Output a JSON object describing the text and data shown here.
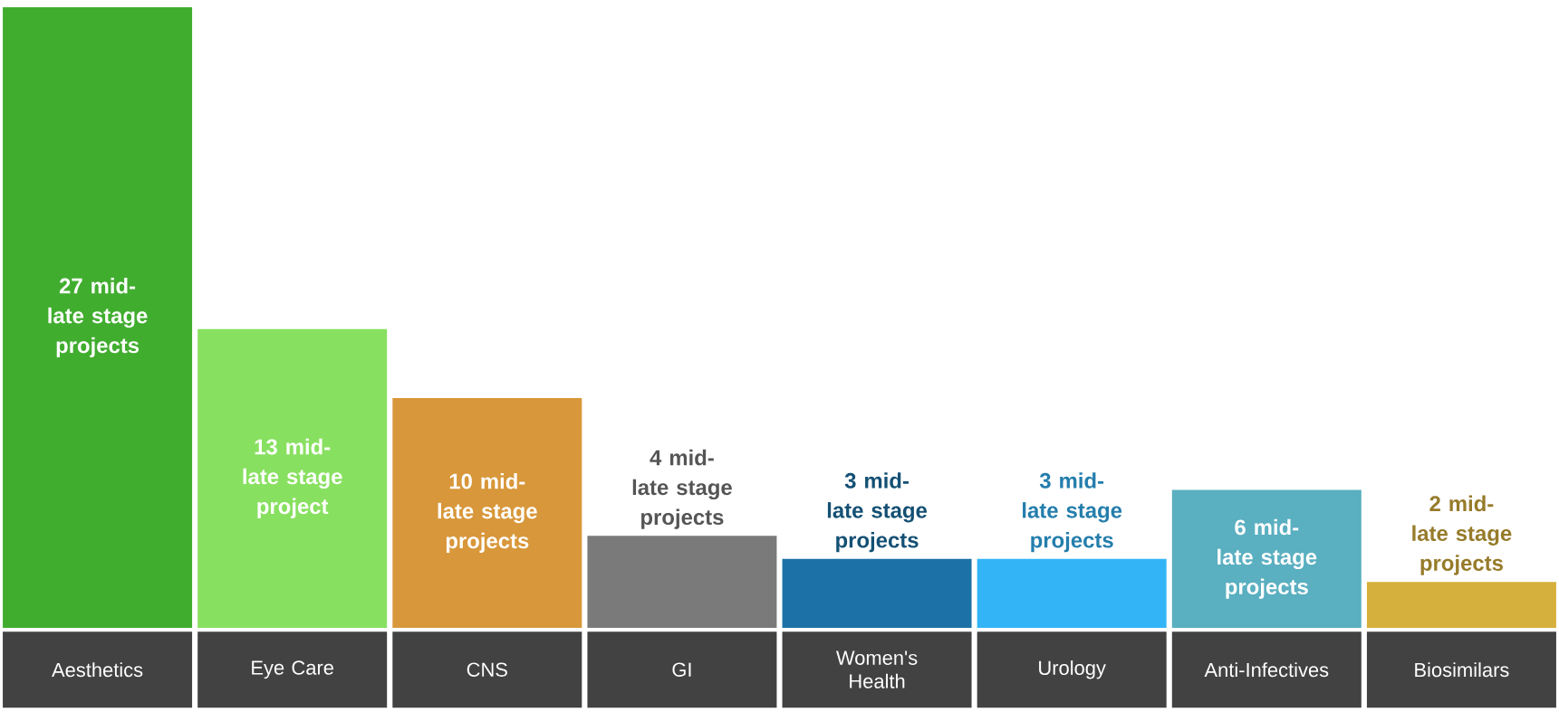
{
  "chart_data": {
    "type": "bar",
    "categories": [
      "Aesthetics",
      "Eye Care",
      "CNS",
      "GI",
      "Women's Health",
      "Urology",
      "Anti-Infectives",
      "Biosimilars"
    ],
    "values": [
      27,
      13,
      10,
      4,
      3,
      3,
      6,
      2
    ],
    "colors": [
      "#41ad2f",
      "#88e060",
      "#d8973a",
      "#7a7a7a",
      "#1c72a6",
      "#33b4f6",
      "#5aafc0",
      "#d6b03c"
    ],
    "value_labels": [
      "27 mid-late stage projects",
      "13 mid-late stage project",
      "10 mid-late stage projects",
      "4 mid-late stage projects",
      "3 mid-late stage projects",
      "3 mid-late stage projects",
      "6 mid-late stage projects",
      "2 mid-late stage projects"
    ]
  }
}
